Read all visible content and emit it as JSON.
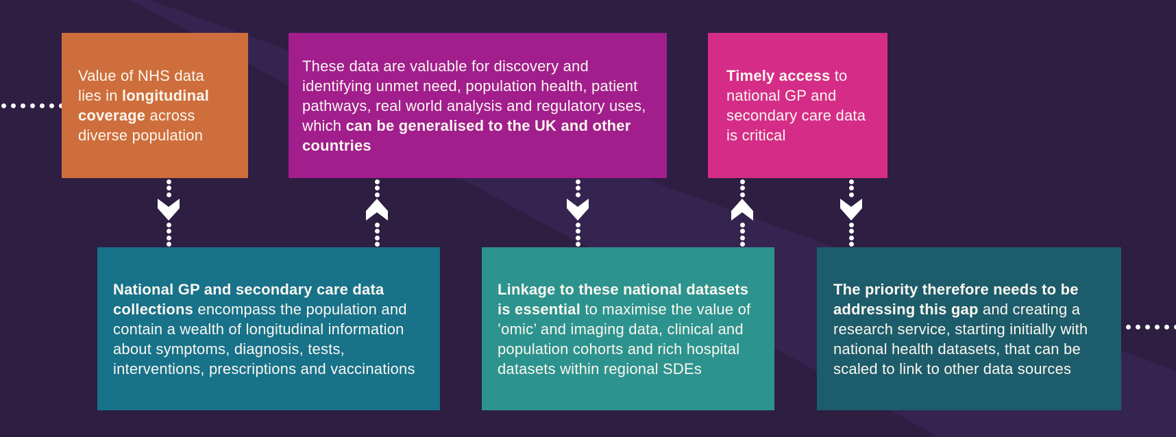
{
  "colors": {
    "background_dark": "#2d1e42",
    "background_light": "#352450",
    "text": "#fcf7f0",
    "dots": "#ffffff",
    "arrow": "#ffffff"
  },
  "cards": {
    "top": [
      {
        "id": "value-of-nhs-data",
        "color": "#ce6e3c",
        "segments": [
          {
            "text": "Value of NHS data lies in ",
            "bold": false
          },
          {
            "text": "longitudinal coverage",
            "bold": true
          },
          {
            "text": " across diverse population",
            "bold": false
          }
        ]
      },
      {
        "id": "data-valuable-for-discovery",
        "color": "#a11e8c",
        "segments": [
          {
            "text": "These data are valuable for discovery and identifying unmet need, population health, patient pathways, real world analysis and regulatory uses, which ",
            "bold": false
          },
          {
            "text": "can be generalised to the UK and other countries",
            "bold": true
          }
        ]
      },
      {
        "id": "timely-access-critical",
        "color": "#d52d87",
        "segments": [
          {
            "text": "Timely access",
            "bold": true
          },
          {
            "text": " to national GP and secondary care data is critical",
            "bold": false
          }
        ]
      }
    ],
    "bottom": [
      {
        "id": "national-gp-data-collections",
        "color": "#17728a",
        "segments": [
          {
            "text": "National GP and secondary care data collections",
            "bold": true
          },
          {
            "text": " encompass the population and contain a wealth of longitudinal information about symptoms, diagnosis, tests, interventions, prescriptions and vaccinations",
            "bold": false
          }
        ]
      },
      {
        "id": "linkage-essential",
        "color": "#2d938e",
        "segments": [
          {
            "text": "Linkage to these national datasets is essential",
            "bold": true
          },
          {
            "text": " to maximise the value of ’omic’ and imaging data, clinical and population cohorts and rich hospital datasets within regional SDEs",
            "bold": false
          }
        ]
      },
      {
        "id": "priority-addressing-gap",
        "color": "#1d5c6b",
        "segments": [
          {
            "text": "The priority therefore needs to be addressing this gap",
            "bold": true
          },
          {
            "text": " and creating a research service, starting initially with national health datasets, that can be scaled to link to other data sources",
            "bold": false
          }
        ]
      }
    ]
  },
  "connectors": [
    {
      "direction": "down"
    },
    {
      "direction": "up"
    },
    {
      "direction": "down"
    },
    {
      "direction": "up"
    },
    {
      "direction": "down"
    }
  ]
}
